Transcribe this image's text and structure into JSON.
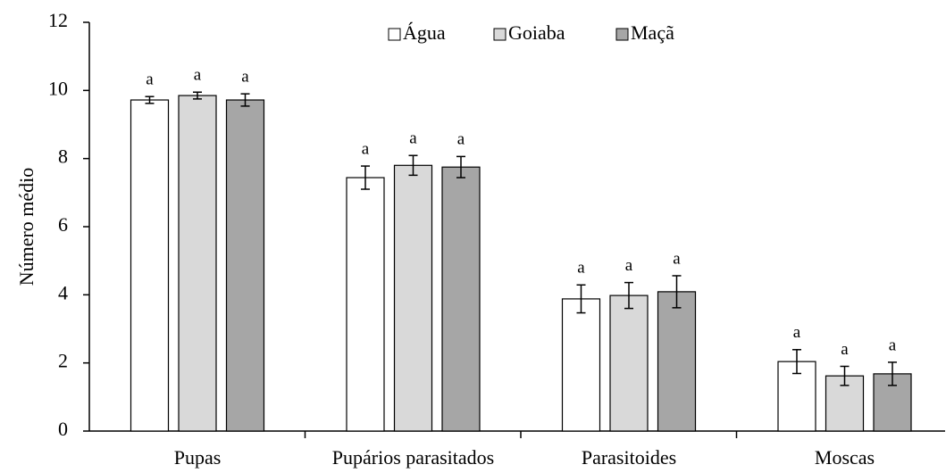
{
  "chart_data": {
    "type": "bar",
    "ylabel": "Número médio",
    "categories": [
      "Pupas",
      "Pupários parasitados",
      "Parasitoides",
      "Moscas"
    ],
    "series": [
      {
        "name": "Água",
        "color": "#ffffff",
        "values": [
          9.72,
          7.44,
          3.88,
          2.04
        ],
        "errors": [
          0.1,
          0.34,
          0.41,
          0.35
        ],
        "annotations": [
          "a",
          "a",
          "a",
          "a"
        ]
      },
      {
        "name": "Goiaba",
        "color": "#d9d9d9",
        "values": [
          9.85,
          7.8,
          3.98,
          1.62
        ],
        "errors": [
          0.1,
          0.29,
          0.38,
          0.28
        ],
        "annotations": [
          "a",
          "a",
          "a",
          "a"
        ]
      },
      {
        "name": "Maçã",
        "color": "#a6a6a6",
        "values": [
          9.72,
          7.75,
          4.09,
          1.68
        ],
        "errors": [
          0.18,
          0.31,
          0.47,
          0.34
        ],
        "annotations": [
          "a",
          "a",
          "a",
          "a"
        ]
      }
    ],
    "ylim": [
      0,
      12
    ],
    "yticks": [
      0,
      2,
      4,
      6,
      8,
      10,
      12
    ],
    "grid": false,
    "legend": "top"
  }
}
